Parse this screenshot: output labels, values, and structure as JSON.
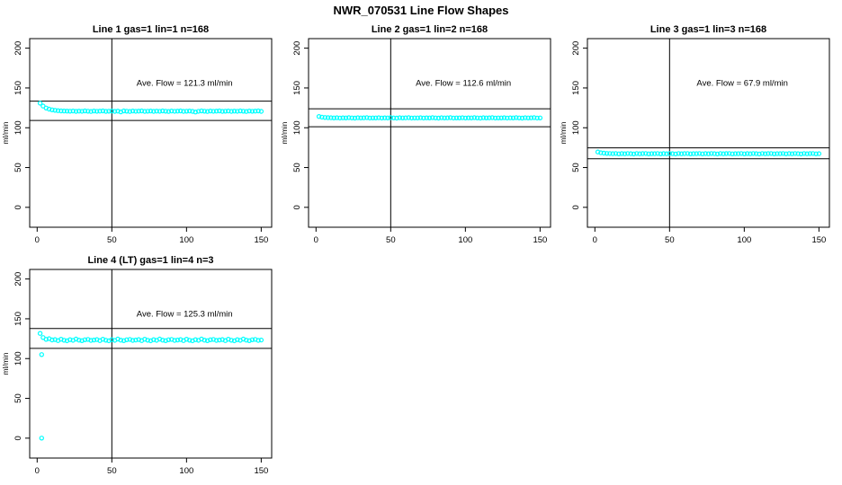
{
  "page": {
    "title": "NWR_070531  Line Flow Shapes"
  },
  "colors": {
    "points": "#00FFFF",
    "axis": "#000000",
    "background": "#FFFFFF"
  },
  "chart_data": [
    {
      "type": "scatter",
      "title": "Line 1 gas=1 lin=1 n=168",
      "ylabel": "ml/min",
      "annotation": "Ave. Flow =  121.3  ml/min",
      "ave_flow": 121.3,
      "xticks": [
        0,
        50,
        100,
        150
      ],
      "yticks": [
        0,
        50,
        100,
        150,
        200
      ],
      "xlim": [
        -5,
        157
      ],
      "ylim": [
        -25,
        212
      ],
      "vline_x": 50,
      "hlines": [
        109.2,
        133.4
      ],
      "x": {
        "from": 2,
        "to": 150,
        "count": 75
      },
      "y": [
        130.9,
        127.2,
        124.8,
        123.4,
        122.5,
        121.9,
        121.5,
        121.2,
        121.0,
        120.9,
        120.8,
        121.0,
        120.6,
        120.9,
        120.7,
        121.1,
        120.8,
        120.5,
        121.0,
        120.7,
        120.9,
        121.1,
        120.6,
        120.8,
        121.0,
        120.6,
        120.9,
        119.9,
        121.1,
        120.8,
        120.5,
        121.0,
        120.7,
        120.9,
        121.1,
        120.6,
        120.8,
        121.0,
        120.6,
        120.9,
        120.7,
        121.1,
        120.8,
        120.5,
        121.0,
        120.7,
        120.9,
        121.1,
        120.6,
        120.8,
        121.0,
        120.6,
        119.8,
        120.7,
        121.1,
        120.8,
        120.5,
        121.0,
        120.7,
        120.9,
        121.1,
        120.6,
        120.8,
        121.0,
        120.6,
        120.9,
        120.7,
        121.1,
        120.8,
        120.5,
        121.0,
        120.7,
        120.9,
        121.1,
        120.6
      ],
      "extra_points": []
    },
    {
      "type": "scatter",
      "title": "Line 2 gas=1 lin=2 n=168",
      "ylabel": "ml/min",
      "annotation": "Ave. Flow =  112.6  ml/min",
      "ave_flow": 112.6,
      "xticks": [
        0,
        50,
        100,
        150
      ],
      "yticks": [
        0,
        50,
        100,
        150,
        200
      ],
      "xlim": [
        -5,
        157
      ],
      "ylim": [
        -25,
        212
      ],
      "vline_x": 50,
      "hlines": [
        101.3,
        123.9
      ],
      "x": {
        "from": 2,
        "to": 150,
        "count": 75
      },
      "y": [
        114.2,
        113.4,
        112.9,
        112.7,
        112.6,
        112.4,
        112.6,
        112.2,
        112.5,
        112.3,
        112.7,
        112.4,
        112.1,
        112.6,
        112.3,
        112.5,
        112.7,
        112.2,
        112.4,
        112.4,
        112.6,
        112.2,
        112.5,
        112.3,
        112.7,
        112.4,
        112.1,
        112.6,
        112.3,
        112.5,
        112.7,
        112.2,
        112.4,
        112.4,
        112.6,
        112.2,
        112.5,
        112.3,
        112.7,
        112.4,
        112.1,
        112.6,
        112.3,
        112.5,
        112.7,
        112.2,
        112.4,
        112.4,
        112.6,
        112.2,
        112.5,
        112.3,
        112.7,
        112.4,
        112.1,
        112.6,
        112.3,
        112.5,
        112.7,
        112.2,
        112.4,
        112.4,
        112.6,
        112.2,
        112.5,
        112.3,
        112.7,
        112.4,
        112.1,
        112.6,
        112.3,
        112.5,
        112.7,
        112.2,
        112.4
      ],
      "extra_points": []
    },
    {
      "type": "scatter",
      "title": "Line 3 gas=1 lin=3 n=168",
      "ylabel": "ml/min",
      "annotation": "Ave. Flow =  67.9  ml/min",
      "ave_flow": 67.9,
      "xticks": [
        0,
        50,
        100,
        150
      ],
      "yticks": [
        0,
        50,
        100,
        150,
        200
      ],
      "xlim": [
        -5,
        157
      ],
      "ylim": [
        -25,
        212
      ],
      "vline_x": 50,
      "hlines": [
        61.1,
        74.7
      ],
      "x": {
        "from": 2,
        "to": 150,
        "count": 75
      },
      "y": [
        69.6,
        68.6,
        68.1,
        67.8,
        67.6,
        67.4,
        67.6,
        67.2,
        67.5,
        67.3,
        67.7,
        67.4,
        67.1,
        67.6,
        67.3,
        67.5,
        67.7,
        67.2,
        67.4,
        67.4,
        67.6,
        67.2,
        67.5,
        67.3,
        67.7,
        67.4,
        67.1,
        67.6,
        67.3,
        67.5,
        67.7,
        67.2,
        67.4,
        67.4,
        67.6,
        67.2,
        67.5,
        67.3,
        67.7,
        67.4,
        67.1,
        67.6,
        67.3,
        67.5,
        67.7,
        67.2,
        67.4,
        67.4,
        67.6,
        67.2,
        67.5,
        67.3,
        67.7,
        67.4,
        67.1,
        67.6,
        67.3,
        67.5,
        67.7,
        67.2,
        67.4,
        67.4,
        67.6,
        67.2,
        67.5,
        67.3,
        67.7,
        67.4,
        67.1,
        67.6,
        67.3,
        67.5,
        67.7,
        67.2,
        67.4
      ],
      "extra_points": []
    },
    {
      "type": "scatter",
      "title": "Line 4 (LT) gas=1 lin=4 n=3",
      "ylabel": "ml/min",
      "annotation": "Ave. Flow =  125.3  ml/min",
      "ave_flow": 125.3,
      "xticks": [
        0,
        50,
        100,
        150
      ],
      "yticks": [
        0,
        50,
        100,
        150,
        200
      ],
      "xlim": [
        -5,
        157
      ],
      "ylim": [
        -25,
        212
      ],
      "vline_x": 50,
      "hlines": [
        112.8,
        137.8
      ],
      "x": {
        "from": 2,
        "to": 150,
        "count": 75
      },
      "y": [
        131.6,
        126.5,
        124.2,
        125.0,
        123.4,
        123.9,
        122.6,
        124.3,
        123.1,
        122.4,
        123.8,
        122.9,
        124.5,
        123.2,
        122.5,
        123.6,
        124.1,
        122.8,
        123.3,
        123.9,
        122.6,
        124.3,
        123.1,
        122.4,
        123.8,
        122.9,
        124.5,
        123.2,
        122.5,
        123.6,
        124.1,
        122.8,
        123.3,
        123.9,
        122.6,
        124.3,
        123.1,
        122.4,
        123.8,
        122.9,
        124.5,
        123.2,
        122.5,
        123.6,
        124.1,
        122.8,
        123.3,
        123.9,
        122.6,
        124.3,
        123.1,
        122.4,
        123.8,
        122.9,
        124.5,
        123.2,
        122.5,
        123.6,
        124.1,
        122.8,
        123.3,
        123.9,
        122.6,
        124.3,
        123.1,
        122.4,
        123.8,
        122.9,
        124.5,
        123.2,
        122.5,
        123.6,
        124.1,
        122.8,
        123.3
      ],
      "extra_points": [
        {
          "x": 3,
          "y": 105
        },
        {
          "x": 3,
          "y": 0
        }
      ]
    }
  ]
}
